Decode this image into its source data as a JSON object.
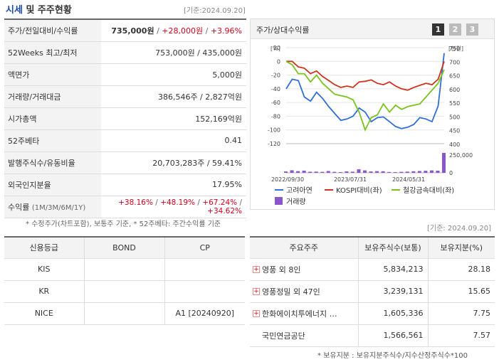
{
  "header": {
    "title_a": "시세",
    "title_b": " 및 주주현황",
    "date": "[기준:2024.09.20]"
  },
  "quote": {
    "price_label": "주가/전일대비/수익률",
    "price": "735,000원",
    "change": "+28,000원",
    "rate": "+3.96%",
    "w52_label": "52Weeks 최고/최저",
    "w52": "753,000원 / 435,000원",
    "par_label": "액면가",
    "par": "5,000원",
    "volume_label": "거래량/거래대금",
    "volume": "386,546주 / 2,827억원",
    "mcap_label": "시가총액",
    "mcap": "152,169억원",
    "beta_label": "52주베타",
    "beta": "0.41",
    "shares_label": "발행주식수/유동비율",
    "shares": "20,703,283주 / 59.41%",
    "foreign_label": "외국인지분율",
    "foreign": "17.95%",
    "returns_label": "수익률",
    "returns_period": "(1M/3M/6M/1Y)",
    "r1": "+38.16%",
    "r2": "+48.19%",
    "r3": "+67.24%",
    "r4": "+34.62%",
    "sep": "/"
  },
  "note1": "* 수정주가(차트포함), 보통주 기준, * 52주베타: 주간수익률 기준",
  "chart_panel": {
    "label": "주가/상대수익률",
    "pages": [
      "1",
      "2",
      "3"
    ]
  },
  "chart_data": {
    "type": "line",
    "left_unit": "[%]",
    "right_unit": "[천원]",
    "left_ticks": [
      "20",
      "0",
      "-20",
      "-40",
      "-60",
      "-80",
      "-100",
      "-120"
    ],
    "right_ticks": [
      "750",
      "700",
      "650",
      "600",
      "550",
      "500",
      "450",
      "400"
    ],
    "vol_tick": "250,000",
    "vol_zero": "0",
    "x_labels": [
      "2022/09/30",
      "2023/07/31",
      "2024/05/31"
    ],
    "ylim": [
      -120,
      20
    ],
    "series": [
      {
        "name": "고려아연",
        "color": "#2f6fd6",
        "values": [
          -40,
          -26,
          -28,
          -52,
          -58,
          -45,
          -54,
          -66,
          -76,
          -86,
          -84,
          -80,
          -68,
          -74,
          -88,
          -82,
          -81,
          -88,
          -95,
          -98,
          -96,
          -92,
          -82,
          -84,
          -88,
          -65,
          12
        ]
      },
      {
        "name": "KOSPI대비(좌)",
        "color": "#d0341e",
        "values": [
          0,
          0,
          -8,
          -10,
          -18,
          -14,
          -22,
          -28,
          -34,
          -38,
          -36,
          -38,
          -30,
          -29,
          -27,
          -32,
          -34,
          -30,
          -36,
          -40,
          -42,
          -38,
          -35,
          -32,
          -34,
          -26,
          0
        ]
      },
      {
        "name": "철강금속대비(좌)",
        "color": "#7ac31e",
        "values": [
          0,
          -5,
          -18,
          -18,
          -30,
          -20,
          -32,
          -40,
          -48,
          -50,
          -52,
          -56,
          -74,
          -100,
          -82,
          -78,
          -62,
          -74,
          -64,
          -70,
          -66,
          -64,
          -62,
          -52,
          -42,
          -32,
          -12
        ]
      }
    ],
    "volume": {
      "name": "거래량",
      "color": "#8a56c9",
      "values": [
        22000,
        42000,
        28000,
        36000,
        18000,
        20000,
        16000,
        30000,
        16000,
        12000,
        24000,
        18000,
        58000,
        40000,
        22000,
        28000,
        26000,
        14000,
        12000,
        16000,
        20000,
        26000,
        30000,
        34000,
        40000,
        36000,
        330000
      ]
    },
    "vol_max": 330000
  },
  "date2": "[기준: 2024.09.20]",
  "credit": {
    "headers": [
      "신용등급",
      "BOND",
      "CP"
    ],
    "rows": [
      [
        "KIS",
        "",
        ""
      ],
      [
        "KR",
        "",
        ""
      ],
      [
        "NICE",
        "",
        "A1  [20240920]"
      ]
    ]
  },
  "holders": {
    "headers": [
      "주요주주",
      "보유주식수(보통)",
      "보유지분(%)"
    ],
    "rows": [
      {
        "name": "영풍 외 8인",
        "shares": "5,834,213",
        "pct": "28.18",
        "expand": "+"
      },
      {
        "name": "영풍정밀 외 47인",
        "shares": "3,239,131",
        "pct": "15.65",
        "expand": "+"
      },
      {
        "name": "한화에이치투에너지 …",
        "shares": "1,605,336",
        "pct": "7.75",
        "expand": "+"
      },
      {
        "name": "국민연금공단",
        "shares": "1,566,561",
        "pct": "7.57",
        "expand": ""
      }
    ]
  },
  "note2": "* 보유지분 : 보유지분주식수/지수산정주식수*100"
}
